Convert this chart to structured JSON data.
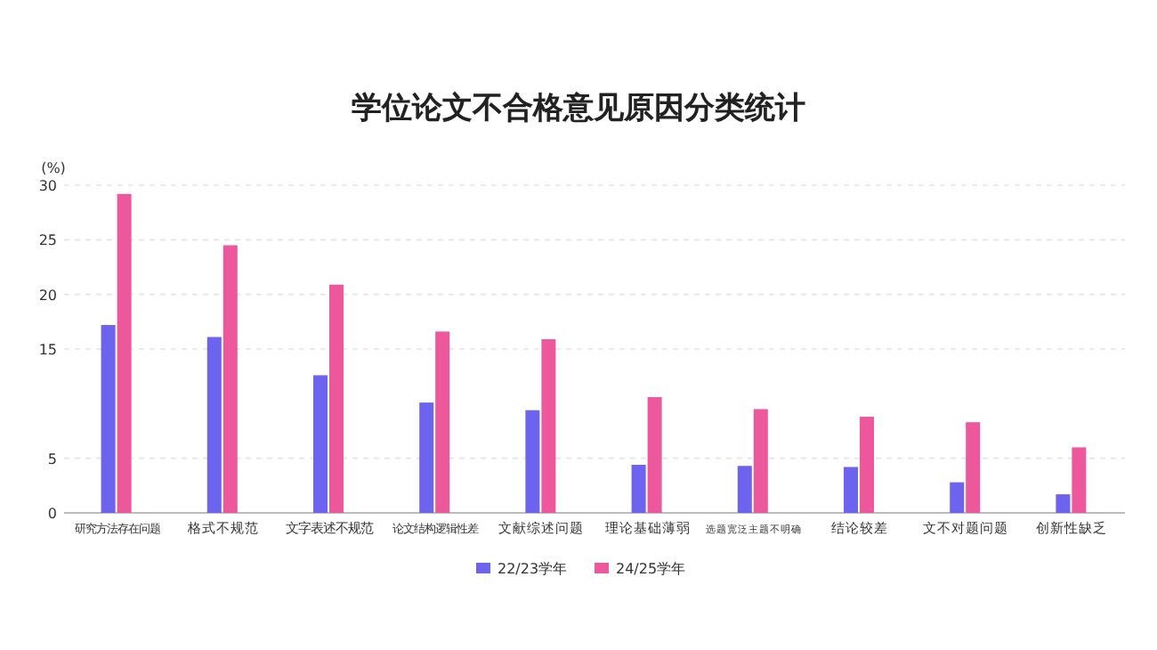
{
  "chart_data": {
    "type": "bar",
    "title": "学位论文不合格意见原因分类统计",
    "ylabel": "(%)",
    "categories": [
      "研究方法存在问题",
      "格式不规范",
      "文字表述不规范",
      "论文结构逻辑性差",
      "文献综述问题",
      "理论基础薄弱",
      "选题宽泛主题不明确",
      "结论较差",
      "文不对题问题",
      "创新性缺乏"
    ],
    "series": [
      {
        "name": "22/23学年",
        "color": "#6c63ee",
        "values": [
          17.2,
          16.1,
          12.6,
          10.1,
          9.4,
          4.4,
          4.3,
          4.2,
          2.8,
          1.7
        ]
      },
      {
        "name": "24/25学年",
        "color": "#ec589b",
        "values": [
          29.2,
          24.5,
          20.9,
          16.6,
          15.9,
          10.6,
          9.5,
          8.8,
          8.3,
          6.0
        ]
      }
    ],
    "ylim": [
      0,
      30
    ],
    "yticks": [
      0,
      5,
      15,
      20,
      25,
      30
    ],
    "grid": "y",
    "legend": "bottom"
  }
}
